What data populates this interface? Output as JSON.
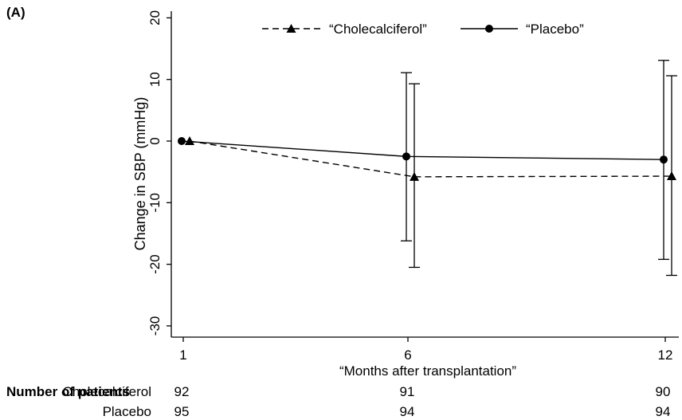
{
  "panel_label": "(A)",
  "chart_data": {
    "type": "line",
    "xlabel": "“Months after transplantation”",
    "ylabel": "Change in SBP (mmHg)",
    "x": [
      1,
      6,
      12
    ],
    "x_ticks": [
      "1",
      "6",
      "12"
    ],
    "ylim": [
      -32,
      22
    ],
    "y_ticks": [
      "20",
      "10",
      "0",
      "-10",
      "-20",
      "-30"
    ],
    "grid": false,
    "legend_position": "top",
    "series": [
      {
        "name": "“Cholecalciferol”",
        "style": "dashed",
        "marker": "triangle",
        "color": "#000000",
        "values": [
          0,
          -5.8,
          -5.7
        ],
        "error_low": [
          null,
          -20.5,
          -21.8
        ],
        "error_high": [
          null,
          9.3,
          10.6
        ]
      },
      {
        "name": "“Placebo”",
        "style": "solid",
        "marker": "circle",
        "color": "#000000",
        "values": [
          0,
          -2.5,
          -3.0
        ],
        "error_low": [
          null,
          -16.2,
          -19.2
        ],
        "error_high": [
          null,
          11.1,
          13.1
        ]
      }
    ]
  },
  "patients_table": {
    "title": "Number of patients",
    "rows": [
      {
        "label": "Cholecalciferol",
        "counts": [
          "92",
          "91",
          "90"
        ]
      },
      {
        "label": "Placebo",
        "counts": [
          "95",
          "94",
          "94"
        ]
      }
    ]
  }
}
